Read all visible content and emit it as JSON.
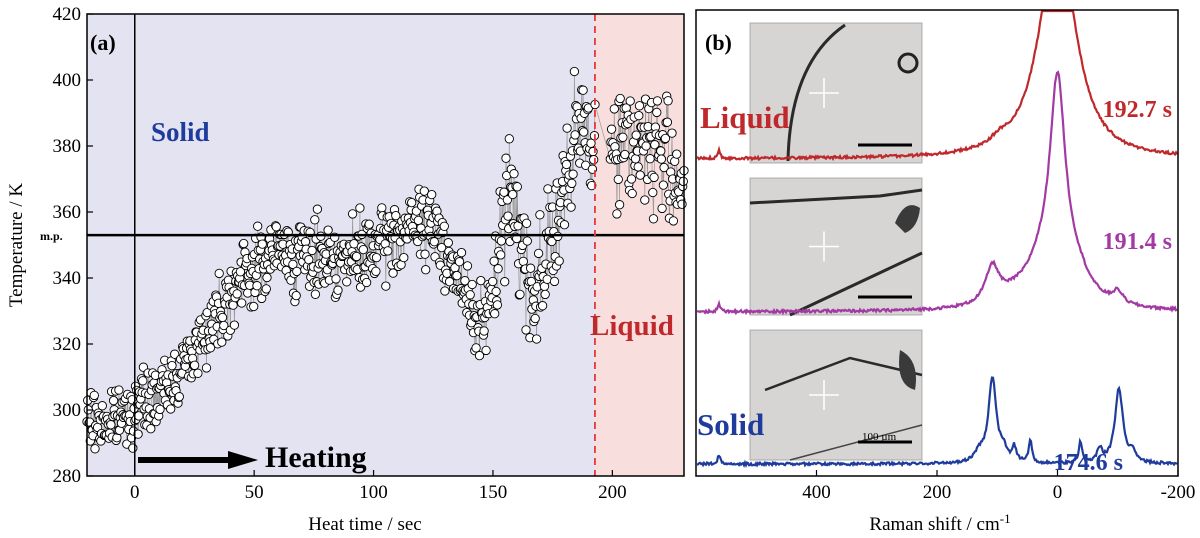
{
  "chart_data": [
    {
      "panel": "(a)",
      "type": "scatter",
      "xlabel": "Heat time / sec",
      "ylabel": "Temperature / K",
      "xlim": [
        -20,
        230
      ],
      "ylim": [
        280,
        420
      ],
      "xticks": [
        0,
        50,
        100,
        150,
        200
      ],
      "yticks": [
        280,
        300,
        320,
        340,
        360,
        380,
        400,
        420
      ],
      "melting_point": {
        "label": "m.p.",
        "value": 353
      },
      "phase_boundary_x": 192.7,
      "region_labels": {
        "solid": "Solid",
        "liquid": "Liquid"
      },
      "arrow_label": "Heating",
      "trend_points": [
        [
          -20,
          297
        ],
        [
          -10,
          296
        ],
        [
          0,
          301
        ],
        [
          10,
          304
        ],
        [
          20,
          313
        ],
        [
          30,
          324
        ],
        [
          40,
          336
        ],
        [
          50,
          343
        ],
        [
          60,
          348
        ],
        [
          70,
          346
        ],
        [
          80,
          347
        ],
        [
          90,
          345
        ],
        [
          100,
          348
        ],
        [
          110,
          353
        ],
        [
          120,
          357
        ],
        [
          128,
          353
        ],
        [
          135,
          340
        ],
        [
          142,
          329
        ],
        [
          148,
          326
        ],
        [
          153,
          352
        ],
        [
          158,
          368
        ],
        [
          163,
          345
        ],
        [
          168,
          335
        ],
        [
          173,
          350
        ],
        [
          178,
          358
        ],
        [
          183,
          375
        ],
        [
          188,
          388
        ],
        [
          192.7,
          382
        ],
        [
          200,
          380
        ],
        [
          210,
          382
        ],
        [
          220,
          378
        ],
        [
          230,
          370
        ]
      ],
      "spread": 12,
      "n_points": 900
    },
    {
      "panel": "(b)",
      "type": "line",
      "xlabel": "Raman shift / cm",
      "xlabel_sup": "-1",
      "xlim": [
        600,
        -200
      ],
      "xticks": [
        400,
        200,
        0,
        -200
      ],
      "series": [
        {
          "time_label": "192.7 s",
          "state_label": "Liquid",
          "color": "#c0292b",
          "baseline": 0.04,
          "peaks": [
            [
              562,
              0.06,
              2.5
            ],
            [
              0,
              1.6,
              22
            ],
            [
              30,
              0.25,
              35
            ],
            [
              -30,
              0.25,
              35
            ],
            [
              95,
              0.05,
              20
            ]
          ]
        },
        {
          "time_label": "191.4 s",
          "state_label": "",
          "color": "#a33aa3",
          "baseline": 0.04,
          "peaks": [
            [
              562,
              0.06,
              2.5
            ],
            [
              108,
              0.25,
              14
            ],
            [
              0,
              1.4,
              16
            ],
            [
              30,
              0.2,
              30
            ],
            [
              -30,
              0.18,
              30
            ],
            [
              -100,
              0.08,
              10
            ],
            [
              70,
              0.05,
              25
            ]
          ]
        },
        {
          "time_label": "174.6 s",
          "state_label": "Solid",
          "color": "#1f3c9c",
          "baseline": 0.04,
          "peaks": [
            [
              562,
              0.06,
              2.5
            ],
            [
              108,
              0.56,
              8
            ],
            [
              72,
              0.1,
              4
            ],
            [
              45,
              0.16,
              3
            ],
            [
              90,
              0.07,
              6
            ],
            [
              130,
              0.06,
              10
            ],
            [
              -38,
              0.15,
              3
            ],
            [
              -70,
              0.09,
              5
            ],
            [
              -102,
              0.5,
              8
            ],
            [
              -125,
              0.06,
              6
            ]
          ]
        }
      ],
      "scale_bar_label": "100 µm"
    }
  ]
}
